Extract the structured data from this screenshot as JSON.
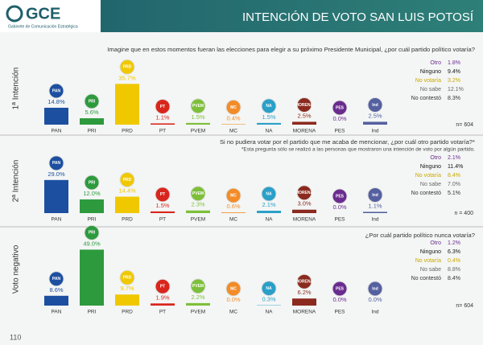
{
  "header": {
    "logo": "GCE",
    "logo_subtitle": "Gabinete de Comunicación Estratégica",
    "title": "INTENCIÓN DE VOTO SAN LUIS POTOSÍ"
  },
  "page_number": "110",
  "chart_data": [
    {
      "type": "bar",
      "title": "1ª Intención",
      "question": "Imagine que en estos momentos fueran las elecciones para elegir a su próximo Presidente Municipal, ¿por cuál partido político votaría?",
      "categories": [
        "PAN",
        "PRI",
        "PRD",
        "PT",
        "PVEM",
        "MC",
        "NA",
        "MORENA",
        "PES",
        "Ind"
      ],
      "values": [
        14.8,
        5.6,
        35.7,
        1.1,
        1.5,
        0.4,
        1.5,
        2.5,
        0.0,
        2.5
      ],
      "value_labels": [
        "14.8%",
        "5.6%",
        "35.7%",
        "1.1%",
        "1.5%",
        "0.4%",
        "1.5%",
        "2.5%",
        "0.0%",
        "2.5%"
      ],
      "colors": [
        "#1c4fa0",
        "#2e9a3e",
        "#f0c800",
        "#d9261c",
        "#7dbf3a",
        "#f28c28",
        "#2aa0c8",
        "#8b2a1e",
        "#6a2c8f",
        "#5560a0"
      ],
      "other_answers": {
        "labels": [
          "Otro",
          "Ninguno",
          "No votaría",
          "No sabe",
          "No contestó"
        ],
        "values": [
          1.8,
          9.4,
          3.2,
          12.1,
          8.3
        ],
        "value_labels": [
          "1.8%",
          "9.4%",
          "3.2%",
          "12.1%",
          "8.3%"
        ],
        "colors": [
          "#6a2c8f",
          "#111111",
          "#c9a800",
          "#666666",
          "#333333"
        ]
      },
      "sample": "n= 604"
    },
    {
      "type": "bar",
      "title": "2ª Intención",
      "question": "Si no pudiera votar por el partido que me acaba de mencionar, ¿por cuál otro partido votaría?*",
      "note": "*Esta pregunta sólo se realizó a las personas que mostraron una intención de voto por algún partido.",
      "categories": [
        "PAN",
        "PRI",
        "PRD",
        "PT",
        "PVEM",
        "MC",
        "NA",
        "MORENA",
        "PES",
        "Ind"
      ],
      "values": [
        29.0,
        12.0,
        14.4,
        1.5,
        2.3,
        0.6,
        2.1,
        3.0,
        0.0,
        1.1
      ],
      "value_labels": [
        "29.0%",
        "12.0%",
        "14.4%",
        "1.5%",
        "2.3%",
        "0.6%",
        "2.1%",
        "3.0%",
        "0.0%",
        "1.1%"
      ],
      "colors": [
        "#1c4fa0",
        "#2e9a3e",
        "#f0c800",
        "#d9261c",
        "#7dbf3a",
        "#f28c28",
        "#2aa0c8",
        "#8b2a1e",
        "#6a2c8f",
        "#5560a0"
      ],
      "other_answers": {
        "labels": [
          "Otro",
          "Ninguno",
          "No votaría",
          "No sabe",
          "No contestó"
        ],
        "values": [
          2.1,
          11.4,
          8.4,
          7.0,
          5.1
        ],
        "value_labels": [
          "2.1%",
          "11.4%",
          "8.4%",
          "7.0%",
          "5.1%"
        ],
        "colors": [
          "#6a2c8f",
          "#111111",
          "#c9a800",
          "#666666",
          "#333333"
        ]
      },
      "sample": "n = 400"
    },
    {
      "type": "bar",
      "title": "Voto negativo",
      "question": "¿Por cuál partido político nunca votaría?",
      "categories": [
        "PAN",
        "PRI",
        "PRD",
        "PT",
        "PVEM",
        "MC",
        "NA",
        "MORENA",
        "PES",
        "Ind"
      ],
      "values": [
        8.6,
        49.0,
        9.7,
        1.9,
        2.2,
        0.0,
        0.3,
        6.2,
        0.0,
        0.0
      ],
      "value_labels": [
        "8.6%",
        "49.0%",
        "9.7%",
        "1.9%",
        "2.2%",
        "0.0%",
        "0.3%",
        "6.2%",
        "0.0%",
        "0.0%"
      ],
      "colors": [
        "#1c4fa0",
        "#2e9a3e",
        "#f0c800",
        "#d9261c",
        "#7dbf3a",
        "#f28c28",
        "#2aa0c8",
        "#8b2a1e",
        "#6a2c8f",
        "#5560a0"
      ],
      "other_answers": {
        "labels": [
          "Otro",
          "Ninguno",
          "No votaría",
          "No sabe",
          "No contestó"
        ],
        "values": [
          1.2,
          6.3,
          0.4,
          8.8,
          8.4
        ],
        "value_labels": [
          "1.2%",
          "6.3%",
          "0.4%",
          "8.8%",
          "8.4%"
        ],
        "colors": [
          "#6a2c8f",
          "#111111",
          "#c9a800",
          "#666666",
          "#333333"
        ]
      },
      "sample": "n= 604"
    }
  ]
}
